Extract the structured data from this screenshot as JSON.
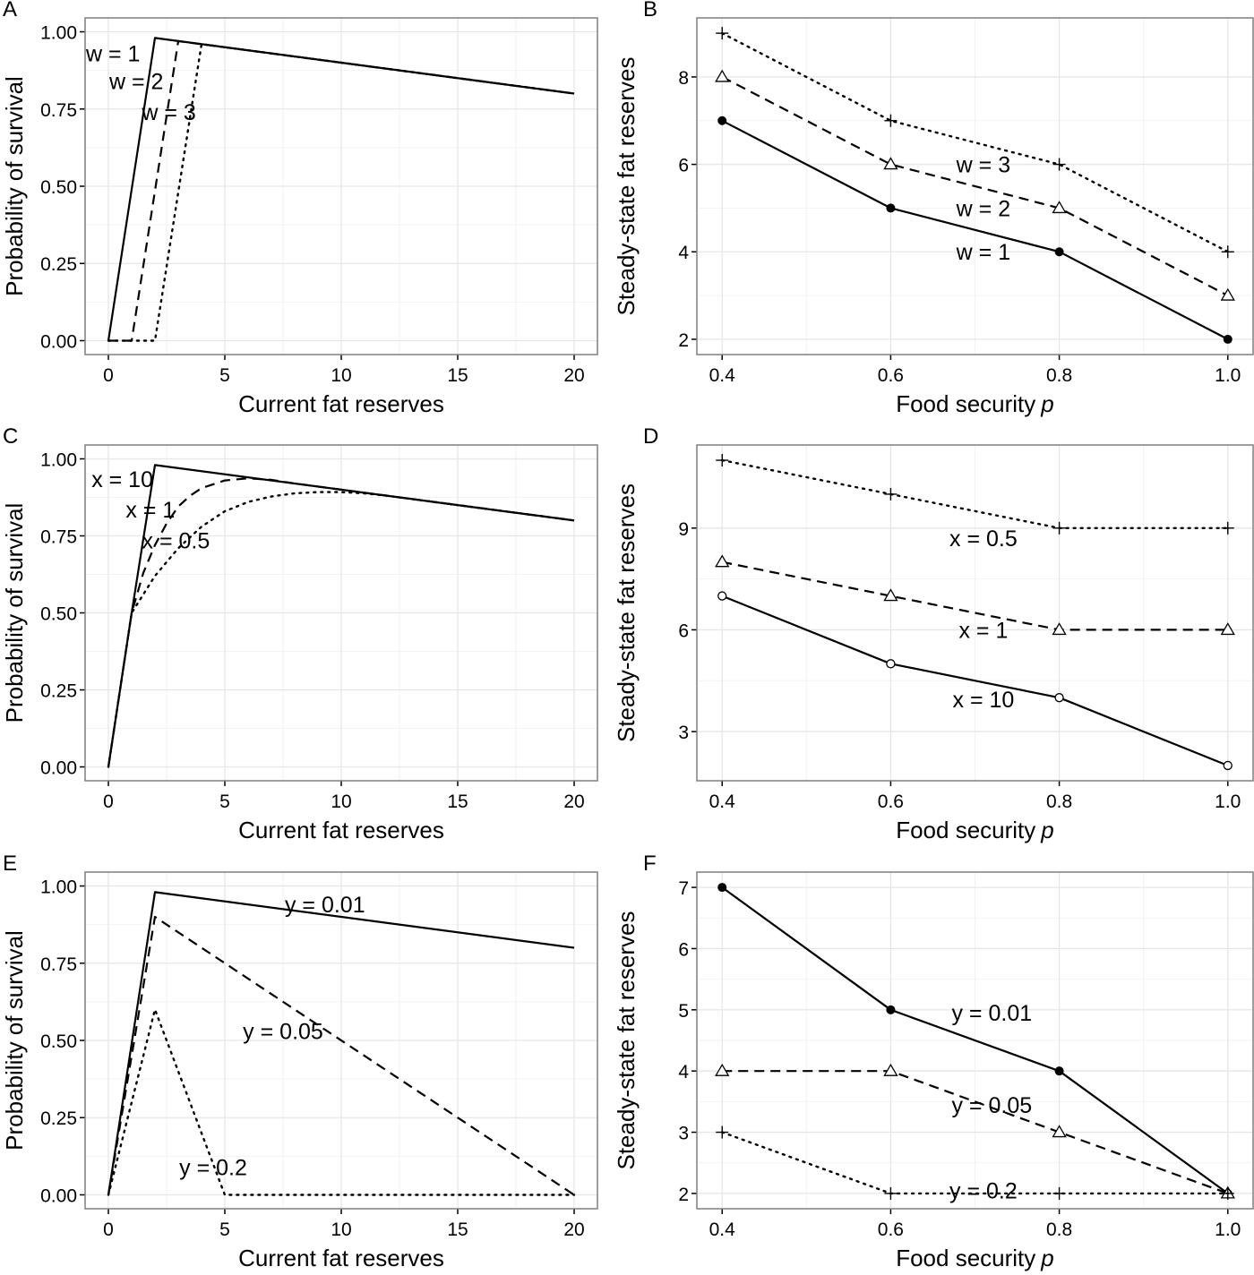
{
  "chart_data": [
    {
      "panel": "A",
      "type": "line",
      "xlabel": "Current fat reserves",
      "ylabel": "Probability of survival",
      "xlim": [
        -1,
        21
      ],
      "ylim": [
        -0.045,
        1.045
      ],
      "xticks": [
        0,
        5,
        10,
        15,
        20
      ],
      "xtick_labels": [
        "0",
        "5",
        "10",
        "15",
        "20"
      ],
      "yticks": [
        0,
        0.25,
        0.5,
        0.75,
        1
      ],
      "ytick_labels": [
        "0.00",
        "0.25",
        "0.50",
        "0.75",
        "1.00"
      ],
      "grid": true,
      "series": [
        {
          "name": "w = 1",
          "style": "solid",
          "x": [
            0,
            2,
            20
          ],
          "y": [
            0,
            0.98,
            0.8
          ]
        },
        {
          "name": "w = 2",
          "style": "dashed",
          "x": [
            0,
            1,
            3,
            20
          ],
          "y": [
            0,
            0,
            0.97,
            0.8
          ]
        },
        {
          "name": "w = 3",
          "style": "dotted",
          "x": [
            0,
            2,
            4,
            20
          ],
          "y": [
            0,
            0,
            0.96,
            0.8
          ]
        }
      ],
      "annotations": [
        {
          "text": "w = 1",
          "x": 0.2,
          "y": 0.93
        },
        {
          "text": "w = 2",
          "x": 1.2,
          "y": 0.84
        },
        {
          "text": "w = 3",
          "x": 2.6,
          "y": 0.74
        }
      ]
    },
    {
      "panel": "B",
      "type": "line",
      "xlabel": "Food security",
      "xlabel_italic": "p",
      "ylabel": "Steady-state fat reserves",
      "xlim": [
        0.37,
        1.03
      ],
      "ylim": [
        1.65,
        9.35
      ],
      "xticks": [
        0.4,
        0.6,
        0.8,
        1.0
      ],
      "xtick_labels": [
        "0.4",
        "0.6",
        "0.8",
        "1.0"
      ],
      "yticks": [
        2,
        4,
        6,
        8
      ],
      "ytick_labels": [
        "2",
        "4",
        "6",
        "8"
      ],
      "grid": true,
      "x": [
        0.4,
        0.6,
        0.8,
        1.0
      ],
      "series": [
        {
          "name": "w = 1",
          "style": "solid",
          "marker": "filled-circle",
          "values": [
            7,
            5,
            4,
            2
          ]
        },
        {
          "name": "w = 2",
          "style": "dashed",
          "marker": "open-triangle",
          "values": [
            8,
            6,
            5,
            3
          ]
        },
        {
          "name": "w = 3",
          "style": "dotted",
          "marker": "plus",
          "values": [
            9,
            7,
            6,
            4
          ]
        }
      ],
      "annotations": [
        {
          "text": "w = 3",
          "x": 0.71,
          "y": 6.0
        },
        {
          "text": "w = 2",
          "x": 0.71,
          "y": 5.0
        },
        {
          "text": "w = 1",
          "x": 0.71,
          "y": 4.0
        }
      ]
    },
    {
      "panel": "C",
      "type": "line",
      "xlabel": "Current fat reserves",
      "ylabel": "Probability of survival",
      "xlim": [
        -1,
        21
      ],
      "ylim": [
        -0.045,
        1.045
      ],
      "xticks": [
        0,
        5,
        10,
        15,
        20
      ],
      "xtick_labels": [
        "0",
        "5",
        "10",
        "15",
        "20"
      ],
      "yticks": [
        0,
        0.25,
        0.5,
        0.75,
        1
      ],
      "ytick_labels": [
        "0.00",
        "0.25",
        "0.50",
        "0.75",
        "1.00"
      ],
      "grid": true,
      "series": [
        {
          "name": "x = 10",
          "style": "solid",
          "x": [
            0,
            1,
            2,
            20
          ],
          "y": [
            0,
            0.5,
            0.98,
            0.8
          ]
        },
        {
          "name": "x = 1",
          "style": "dashed",
          "x": [
            0,
            1,
            1.5,
            2,
            2.5,
            3,
            3.5,
            4,
            5,
            6,
            7,
            8,
            20
          ],
          "y": [
            0,
            0.5,
            0.63,
            0.72,
            0.79,
            0.845,
            0.88,
            0.905,
            0.93,
            0.937,
            0.932,
            0.92,
            0.8
          ]
        },
        {
          "name": "x = 0.5",
          "style": "dotted",
          "x": [
            0,
            1,
            2,
            3,
            4,
            5,
            6,
            7,
            8,
            9,
            10,
            11,
            12,
            20
          ],
          "y": [
            0,
            0.5,
            0.62,
            0.71,
            0.78,
            0.83,
            0.86,
            0.878,
            0.888,
            0.892,
            0.892,
            0.888,
            0.88,
            0.8
          ]
        }
      ],
      "annotations": [
        {
          "text": "x = 10",
          "x": 0.6,
          "y": 0.935
        },
        {
          "text": "x = 1",
          "x": 1.8,
          "y": 0.835
        },
        {
          "text": "x = 0.5",
          "x": 2.9,
          "y": 0.735
        }
      ]
    },
    {
      "panel": "D",
      "type": "line",
      "xlabel": "Food security",
      "xlabel_italic": "p",
      "ylabel": "Steady-state fat reserves",
      "xlim": [
        0.37,
        1.03
      ],
      "ylim": [
        1.55,
        11.45
      ],
      "xticks": [
        0.4,
        0.6,
        0.8,
        1.0
      ],
      "xtick_labels": [
        "0.4",
        "0.6",
        "0.8",
        "1.0"
      ],
      "yticks": [
        3,
        6,
        9
      ],
      "ytick_labels": [
        "3",
        "6",
        "9"
      ],
      "grid": true,
      "x": [
        0.4,
        0.6,
        0.8,
        1.0
      ],
      "series": [
        {
          "name": "x = 10",
          "style": "solid",
          "marker": "open-circle",
          "values": [
            7,
            5,
            4,
            2
          ]
        },
        {
          "name": "x = 1",
          "style": "dashed",
          "marker": "open-triangle",
          "values": [
            8,
            7,
            6,
            6
          ]
        },
        {
          "name": "x = 0.5",
          "style": "dotted",
          "marker": "plus",
          "values": [
            11,
            10,
            9,
            9
          ]
        }
      ],
      "annotations": [
        {
          "text": "x = 0.5",
          "x": 0.71,
          "y": 8.7
        },
        {
          "text": "x = 1",
          "x": 0.71,
          "y": 6.0
        },
        {
          "text": "x = 10",
          "x": 0.71,
          "y": 3.95
        }
      ]
    },
    {
      "panel": "E",
      "type": "line",
      "xlabel": "Current fat reserves",
      "ylabel": "Probability of survival",
      "xlim": [
        -1,
        21
      ],
      "ylim": [
        -0.045,
        1.045
      ],
      "xticks": [
        0,
        5,
        10,
        15,
        20
      ],
      "xtick_labels": [
        "0",
        "5",
        "10",
        "15",
        "20"
      ],
      "yticks": [
        0,
        0.25,
        0.5,
        0.75,
        1
      ],
      "ytick_labels": [
        "0.00",
        "0.25",
        "0.50",
        "0.75",
        "1.00"
      ],
      "grid": true,
      "series": [
        {
          "name": "y = 0.01",
          "style": "solid",
          "x": [
            0,
            2,
            20
          ],
          "y": [
            0,
            0.98,
            0.8
          ]
        },
        {
          "name": "y = 0.05",
          "style": "dashed",
          "x": [
            0,
            2,
            20
          ],
          "y": [
            0,
            0.9,
            0
          ]
        },
        {
          "name": "y = 0.2",
          "style": "dotted",
          "x": [
            0,
            2,
            5,
            20
          ],
          "y": [
            0,
            0.6,
            0,
            0
          ]
        }
      ],
      "annotations": [
        {
          "text": "y = 0.01",
          "x": 9.3,
          "y": 0.94
        },
        {
          "text": "y = 0.05",
          "x": 7.5,
          "y": 0.53
        },
        {
          "text": "y = 0.2",
          "x": 4.5,
          "y": 0.09
        }
      ]
    },
    {
      "panel": "F",
      "type": "line",
      "xlabel": "Food security",
      "xlabel_italic": "p",
      "ylabel": "Steady-state fat reserves",
      "xlim": [
        0.37,
        1.03
      ],
      "ylim": [
        1.75,
        7.25
      ],
      "xticks": [
        0.4,
        0.6,
        0.8,
        1.0
      ],
      "xtick_labels": [
        "0.4",
        "0.6",
        "0.8",
        "1.0"
      ],
      "yticks": [
        2,
        3,
        4,
        5,
        6,
        7
      ],
      "ytick_labels": [
        "2",
        "3",
        "4",
        "5",
        "6",
        "7"
      ],
      "grid": true,
      "x": [
        0.4,
        0.6,
        0.8,
        1.0
      ],
      "series": [
        {
          "name": "y = 0.01",
          "style": "solid",
          "marker": "filled-circle",
          "values": [
            7,
            5,
            4,
            2
          ]
        },
        {
          "name": "y = 0.05",
          "style": "dashed",
          "marker": "open-triangle",
          "values": [
            4,
            4,
            3,
            2
          ]
        },
        {
          "name": "y = 0.2",
          "style": "dotted",
          "marker": "plus",
          "values": [
            3,
            2,
            2,
            2
          ]
        }
      ],
      "annotations": [
        {
          "text": "y = 0.01",
          "x": 0.72,
          "y": 4.95
        },
        {
          "text": "y = 0.05",
          "x": 0.72,
          "y": 3.45
        },
        {
          "text": "y = 0.2",
          "x": 0.71,
          "y": 2.05
        }
      ]
    }
  ]
}
